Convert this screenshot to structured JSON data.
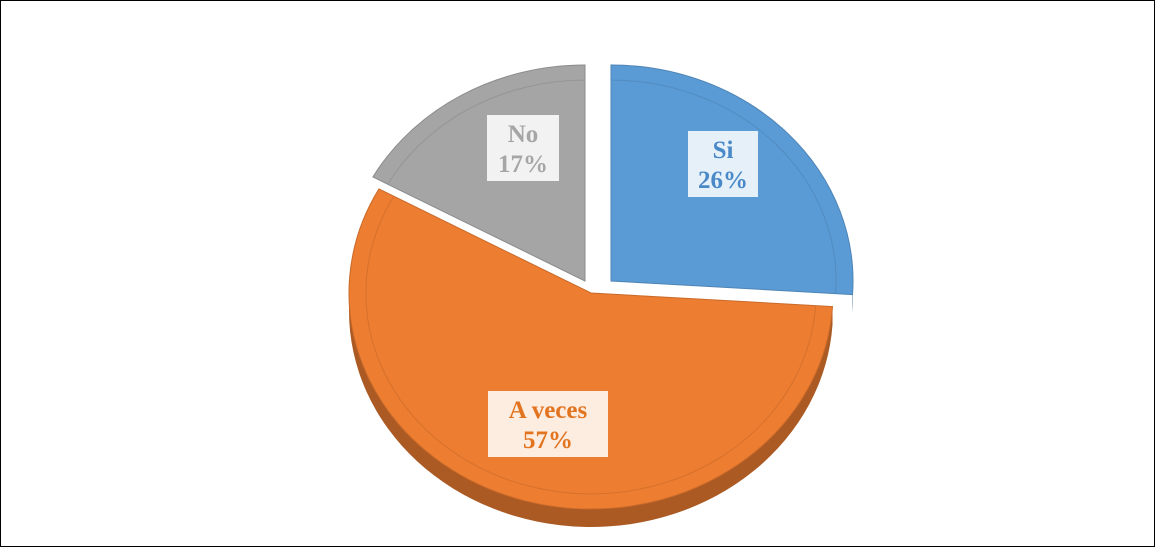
{
  "chart_data": {
    "type": "pie",
    "title": "",
    "categories": [
      "Si",
      "A veces",
      "No"
    ],
    "values": [
      26,
      57,
      17
    ],
    "unit": "%",
    "colors": [
      "#5B9BD5",
      "#ED7D31",
      "#A5A5A5"
    ],
    "label_colors": [
      "#4A89C8",
      "#E2741F",
      "#A6A6A6"
    ],
    "labels": [
      {
        "name": "Si",
        "value": "26%"
      },
      {
        "name": "A veces",
        "value": "57%"
      },
      {
        "name": "No",
        "value": "17%"
      }
    ],
    "style": "3d",
    "exploded": true,
    "legend": "none"
  }
}
